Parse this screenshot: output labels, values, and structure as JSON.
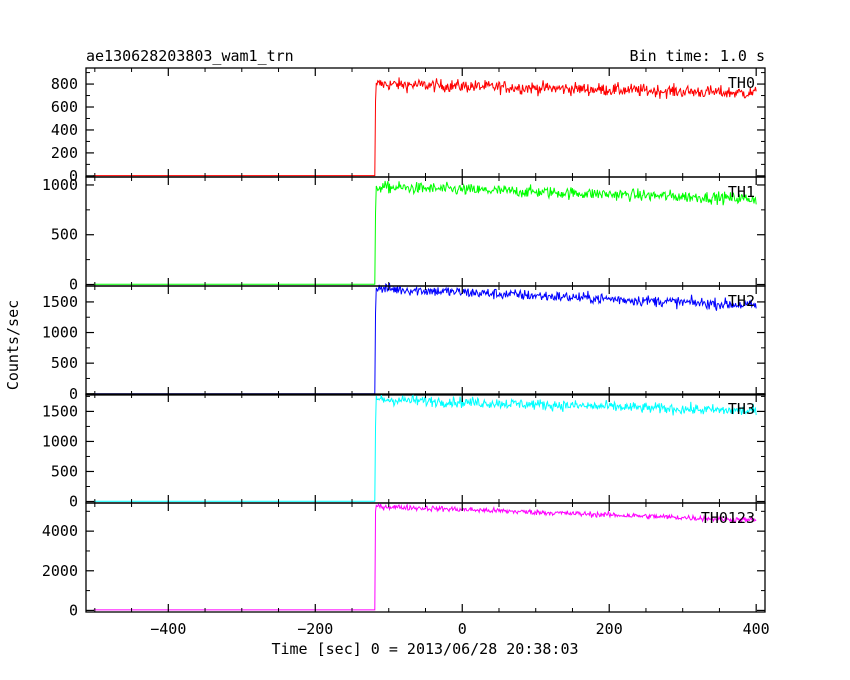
{
  "chart_data": {
    "type": "line",
    "title_left": "ae130628203803_wam1_trn",
    "title_right": "Bin time: 1.0 s",
    "xlabel": "Time [sec] 0 = 2013/06/28 20:38:03",
    "ylabel": "Counts/sec",
    "xlim": [
      -512,
      412
    ],
    "x_ticks": [
      -400,
      -200,
      0,
      200,
      400
    ],
    "x_tick_labels": [
      "−400",
      "−200",
      "0",
      "200",
      "400"
    ],
    "grid": false,
    "onset_time": -118,
    "end_time": 400,
    "panels": [
      {
        "name": "TH0",
        "color": "#ff0000",
        "ylim": [
          -10,
          940
        ],
        "y_ticks": [
          0,
          200,
          400,
          600,
          800
        ],
        "y_tick_labels": [
          "0",
          "200",
          "400",
          "600",
          "800"
        ],
        "baseline": 2,
        "level_start": 800,
        "level_end": 720,
        "noise": 28,
        "first_bins": [
          650,
          810,
          790
        ]
      },
      {
        "name": "TH1",
        "color": "#00ff00",
        "ylim": [
          -15,
          1080
        ],
        "y_ticks": [
          0,
          500,
          1000
        ],
        "y_tick_labels": [
          "0",
          "500",
          "1000"
        ],
        "baseline": 2,
        "level_start": 980,
        "level_end": 860,
        "noise": 30,
        "first_bins": [
          720,
          990,
          970
        ]
      },
      {
        "name": "TH2",
        "color": "#0000ff",
        "ylim": [
          -20,
          1760
        ],
        "y_ticks": [
          0,
          500,
          1000,
          1500
        ],
        "y_tick_labels": [
          "0",
          "500",
          "1000",
          "1500"
        ],
        "baseline": 0,
        "level_start": 1720,
        "level_end": 1440,
        "noise": 45,
        "first_bins": [
          1320,
          1730,
          1700
        ]
      },
      {
        "name": "TH3",
        "color": "#00ffff",
        "ylim": [
          -25,
          1790
        ],
        "y_ticks": [
          0,
          500,
          1000,
          1500
        ],
        "y_tick_labels": [
          "0",
          "500",
          "1000",
          "1500"
        ],
        "baseline": 5,
        "level_start": 1700,
        "level_end": 1500,
        "noise": 45,
        "first_bins": [
          1250,
          1760,
          1700
        ]
      },
      {
        "name": "TH0123",
        "color": "#ff00ff",
        "ylim": [
          -80,
          5420
        ],
        "y_ticks": [
          0,
          2000,
          4000
        ],
        "y_tick_labels": [
          "0",
          "2000",
          "4000"
        ],
        "baseline": 30,
        "level_start": 5250,
        "level_end": 4550,
        "noise": 70,
        "first_bins": [
          5000,
          5300,
          5250
        ]
      }
    ]
  }
}
